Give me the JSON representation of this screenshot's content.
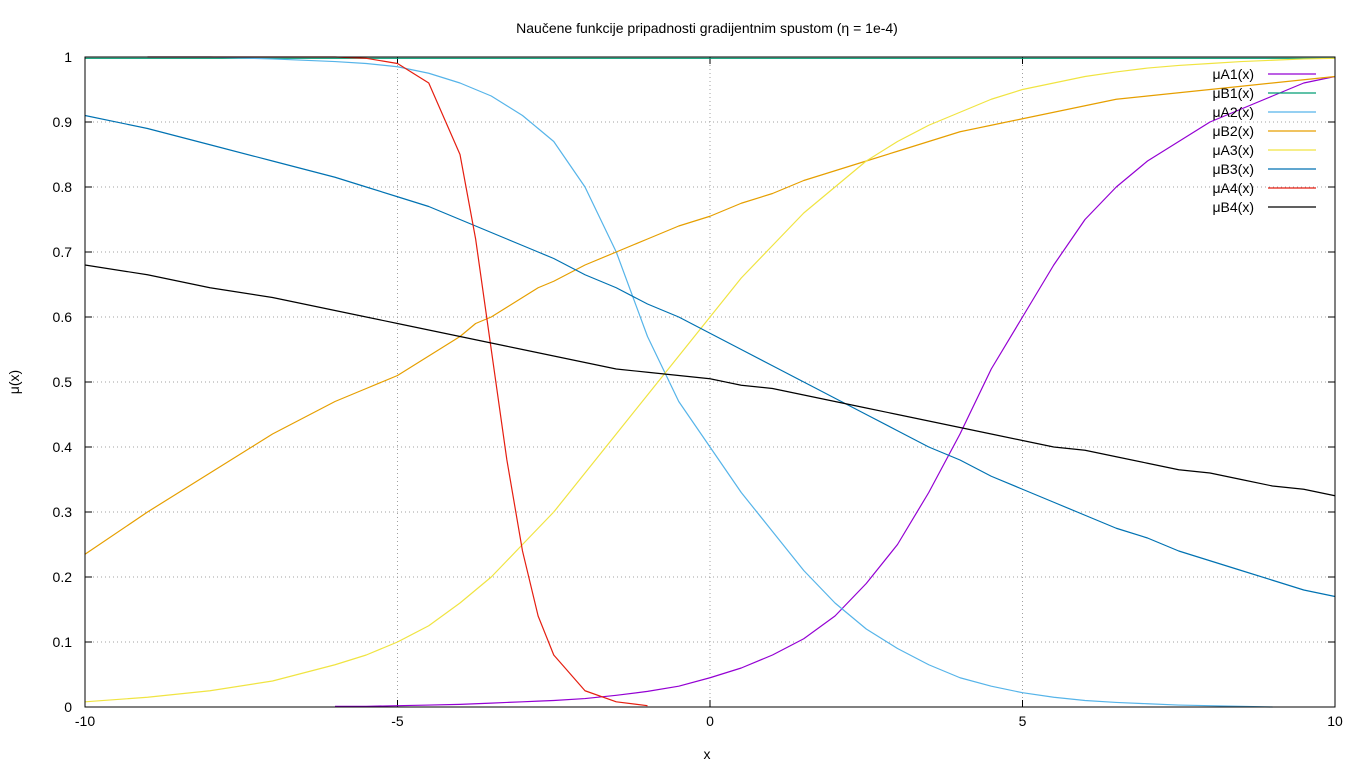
{
  "chart_data": {
    "type": "line",
    "title": "Naučene funkcije pripadnosti gradijentnim spustom (η = 1e-4)",
    "xlabel": "x",
    "ylabel": "μ(x)",
    "xlim": [
      -10,
      10
    ],
    "ylim": [
      0,
      1
    ],
    "xticks": [
      -10,
      -5,
      0,
      5,
      10
    ],
    "xtick_labels": [
      "-10",
      "-5",
      "0",
      "5",
      "10"
    ],
    "yticks": [
      0,
      0.1,
      0.2,
      0.3,
      0.4,
      0.5,
      0.6,
      0.7,
      0.8,
      0.9,
      1
    ],
    "ytick_labels": [
      "0",
      "0.1",
      "0.2",
      "0.3",
      "0.4",
      "0.5",
      "0.6",
      "0.7",
      "0.8",
      "0.9",
      "1"
    ],
    "grid": true,
    "legend_position": "top-right",
    "x": [
      -10,
      -9,
      -8,
      -7,
      -6,
      -5.5,
      -5,
      -4.5,
      -4,
      -3.75,
      -3.5,
      -3.25,
      -3,
      -2.75,
      -2.5,
      -2,
      -1.5,
      -1,
      -0.5,
      0,
      0.5,
      1,
      1.5,
      2,
      2.5,
      3,
      3.5,
      4,
      4.5,
      5,
      5.5,
      6,
      6.5,
      7,
      7.5,
      8,
      8.5,
      9,
      9.5,
      10
    ],
    "series": [
      {
        "name": "μA1(x)",
        "color": "#9400d3",
        "x_start": -6,
        "values": [
          null,
          null,
          null,
          null,
          0.001,
          0.001,
          0.002,
          0.003,
          0.004,
          0.005,
          0.006,
          0.007,
          0.008,
          0.009,
          0.01,
          0.013,
          0.018,
          0.024,
          0.032,
          0.045,
          0.06,
          0.08,
          0.105,
          0.14,
          0.19,
          0.25,
          0.33,
          0.42,
          0.52,
          0.6,
          0.68,
          0.75,
          0.8,
          0.84,
          0.87,
          0.9,
          0.92,
          0.94,
          0.96,
          0.97
        ]
      },
      {
        "name": "μB1(x)",
        "color": "#009e73",
        "values": [
          0.998,
          0.998,
          0.998,
          0.998,
          0.998,
          0.998,
          0.998,
          0.998,
          0.998,
          0.998,
          0.998,
          0.998,
          0.998,
          0.998,
          0.998,
          0.998,
          0.998,
          0.998,
          0.998,
          0.998,
          0.998,
          0.998,
          0.998,
          0.998,
          0.998,
          0.998,
          0.998,
          0.998,
          0.998,
          0.998,
          0.998,
          0.998,
          0.998,
          0.998,
          0.998,
          0.998,
          0.998,
          0.998,
          0.998,
          0.998
        ]
      },
      {
        "name": "μA2(x)",
        "color": "#56b4e9",
        "x_start": -9,
        "values": [
          null,
          1.0,
          1.0,
          0.997,
          0.993,
          0.99,
          0.985,
          0.975,
          0.96,
          0.95,
          0.94,
          0.925,
          0.91,
          0.89,
          0.87,
          0.8,
          0.7,
          0.57,
          0.47,
          0.4,
          0.33,
          0.27,
          0.21,
          0.16,
          0.12,
          0.09,
          0.065,
          0.045,
          0.032,
          0.022,
          0.015,
          0.01,
          0.007,
          0.005,
          0.003,
          0.002,
          0.001,
          0.0,
          null,
          null
        ]
      },
      {
        "name": "μB2(x)",
        "color": "#e69f00",
        "values": [
          0.235,
          0.3,
          0.36,
          0.42,
          0.47,
          0.49,
          0.51,
          0.54,
          0.57,
          0.59,
          0.6,
          0.615,
          0.63,
          0.645,
          0.655,
          0.68,
          0.7,
          0.72,
          0.74,
          0.755,
          0.775,
          0.79,
          0.81,
          0.825,
          0.84,
          0.855,
          0.87,
          0.885,
          0.895,
          0.905,
          0.915,
          0.925,
          0.935,
          0.94,
          0.945,
          0.95,
          0.955,
          0.96,
          0.965,
          0.97
        ]
      },
      {
        "name": "μA3(x)",
        "color": "#f0e442",
        "values": [
          0.008,
          0.015,
          0.025,
          0.04,
          0.065,
          0.08,
          0.1,
          0.125,
          0.16,
          0.18,
          0.2,
          0.225,
          0.25,
          0.275,
          0.3,
          0.36,
          0.42,
          0.48,
          0.54,
          0.6,
          0.66,
          0.71,
          0.76,
          0.8,
          0.84,
          0.87,
          0.895,
          0.915,
          0.935,
          0.95,
          0.96,
          0.97,
          0.977,
          0.983,
          0.987,
          0.99,
          0.993,
          0.995,
          0.997,
          0.998
        ]
      },
      {
        "name": "μB3(x)",
        "color": "#0072b2",
        "values": [
          0.91,
          0.89,
          0.865,
          0.84,
          0.815,
          0.8,
          0.785,
          0.77,
          0.75,
          0.74,
          0.73,
          0.72,
          0.71,
          0.7,
          0.69,
          0.665,
          0.645,
          0.62,
          0.6,
          0.575,
          0.55,
          0.525,
          0.5,
          0.475,
          0.45,
          0.425,
          0.4,
          0.38,
          0.355,
          0.335,
          0.315,
          0.295,
          0.275,
          0.26,
          0.24,
          0.225,
          0.21,
          0.195,
          0.18,
          0.17
        ]
      },
      {
        "name": "μA4(x)",
        "color": "#e51e10",
        "x_start": -9,
        "x_end": -1,
        "values": [
          null,
          1.0,
          1.0,
          1.0,
          1.0,
          0.998,
          0.99,
          0.96,
          0.85,
          0.72,
          0.55,
          0.38,
          0.24,
          0.14,
          0.08,
          0.025,
          0.008,
          0.002,
          null,
          null,
          null,
          null,
          null,
          null,
          null,
          null,
          null,
          null,
          null,
          null,
          null,
          null,
          null,
          null,
          null,
          null,
          null,
          null,
          null,
          null
        ]
      },
      {
        "name": "μB4(x)",
        "color": "#000000",
        "values": [
          0.68,
          0.665,
          0.645,
          0.63,
          0.61,
          0.6,
          0.59,
          0.58,
          0.57,
          0.565,
          0.56,
          0.555,
          0.55,
          0.545,
          0.54,
          0.53,
          0.52,
          0.515,
          0.51,
          0.505,
          0.495,
          0.49,
          0.48,
          0.47,
          0.46,
          0.45,
          0.44,
          0.43,
          0.42,
          0.41,
          0.4,
          0.395,
          0.385,
          0.375,
          0.365,
          0.36,
          0.35,
          0.34,
          0.335,
          0.325
        ]
      }
    ]
  }
}
